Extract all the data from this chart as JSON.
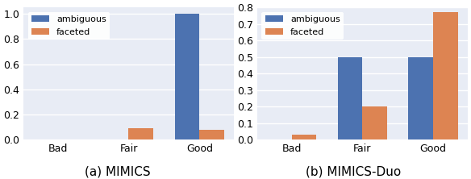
{
  "categories": [
    "Bad",
    "Fair",
    "Good"
  ],
  "mimics": {
    "ambiguous": [
      0.0,
      0.0,
      1.0
    ],
    "faceted": [
      0.0,
      0.09,
      0.08
    ]
  },
  "mimics_duo": {
    "ambiguous": [
      0.0,
      0.5,
      0.5
    ],
    "faceted": [
      0.03,
      0.2,
      0.77
    ]
  },
  "colors": {
    "ambiguous": "#4C72B0",
    "faceted": "#DD8452"
  },
  "ylim_mimics": [
    0.0,
    1.05
  ],
  "ylim_duo": [
    0.0,
    0.8
  ],
  "yticks_mimics": [
    0.0,
    0.2,
    0.4,
    0.6,
    0.8,
    1.0
  ],
  "yticks_duo": [
    0.0,
    0.1,
    0.2,
    0.3,
    0.4,
    0.5,
    0.6,
    0.7,
    0.8
  ],
  "label_a": "(a) MIMICS",
  "label_b": "(b) MIMICS-Duo",
  "legend_labels": [
    "ambiguous",
    "faceted"
  ],
  "bar_width": 0.35,
  "bg_color": "#E8ECF5"
}
